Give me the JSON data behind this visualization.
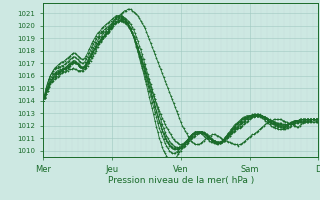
{
  "bg_color": "#cde8e2",
  "grid_color": "#a0c8c0",
  "line_color": "#1a6b2a",
  "xlabel": "Pression niveau de la mer( hPa )",
  "ylim": [
    1009.5,
    1021.8
  ],
  "yticks": [
    1010,
    1011,
    1012,
    1013,
    1014,
    1015,
    1016,
    1017,
    1018,
    1019,
    1020,
    1021
  ],
  "xtick_labels": [
    "Mer",
    "Jeu",
    "Ven",
    "Sam",
    "D"
  ],
  "xtick_positions": [
    0,
    48,
    96,
    144,
    192
  ],
  "total_points": 193,
  "series": [
    [
      1014.0,
      1014.2,
      1014.5,
      1014.8,
      1015.1,
      1015.3,
      1015.5,
      1015.6,
      1015.7,
      1015.8,
      1015.9,
      1016.0,
      1016.1,
      1016.2,
      1016.3,
      1016.3,
      1016.4,
      1016.4,
      1016.5,
      1016.5,
      1016.5,
      1016.6,
      1016.5,
      1016.5,
      1016.4,
      1016.4,
      1016.4,
      1016.4,
      1016.4,
      1016.5,
      1016.6,
      1016.8,
      1017.0,
      1017.2,
      1017.4,
      1017.6,
      1017.8,
      1018.0,
      1018.3,
      1018.5,
      1018.7,
      1018.9,
      1019.0,
      1019.2,
      1019.3,
      1019.5,
      1019.7,
      1019.9,
      1020.1,
      1020.3,
      1020.5,
      1020.6,
      1020.7,
      1020.8,
      1020.9,
      1021.0,
      1021.1,
      1021.2,
      1021.2,
      1021.3,
      1021.3,
      1021.3,
      1021.2,
      1021.1,
      1021.0,
      1020.9,
      1020.8,
      1020.6,
      1020.4,
      1020.2,
      1020.0,
      1019.8,
      1019.5,
      1019.2,
      1018.9,
      1018.6,
      1018.3,
      1018.0,
      1017.7,
      1017.4,
      1017.1,
      1016.8,
      1016.5,
      1016.2,
      1015.9,
      1015.6,
      1015.3,
      1015.0,
      1014.7,
      1014.4,
      1014.1,
      1013.8,
      1013.5,
      1013.2,
      1012.9,
      1012.6,
      1012.3,
      1012.0,
      1011.8,
      1011.6,
      1011.4,
      1011.2,
      1011.0,
      1010.8,
      1010.7,
      1010.6,
      1010.5,
      1010.5,
      1010.5,
      1010.5,
      1010.6,
      1010.7,
      1010.8,
      1010.9,
      1011.0,
      1011.1,
      1011.2,
      1011.2,
      1011.3,
      1011.3,
      1011.3,
      1011.2,
      1011.2,
      1011.1,
      1011.0,
      1010.9,
      1010.9,
      1010.8,
      1010.8,
      1010.7,
      1010.7,
      1010.6,
      1010.6,
      1010.5,
      1010.5,
      1010.5,
      1010.4,
      1010.5,
      1010.5,
      1010.6,
      1010.7,
      1010.8,
      1010.9,
      1011.0,
      1011.1,
      1011.2,
      1011.3,
      1011.3,
      1011.4,
      1011.5,
      1011.6,
      1011.7,
      1011.8,
      1011.9,
      1012.0,
      1012.1,
      1012.2,
      1012.3,
      1012.3,
      1012.4,
      1012.4,
      1012.5,
      1012.5,
      1012.5,
      1012.5,
      1012.5,
      1012.5,
      1012.4,
      1012.4,
      1012.3,
      1012.3,
      1012.2,
      1012.2,
      1012.1,
      1012.1,
      1012.0,
      1012.0,
      1011.9,
      1011.9,
      1012.0,
      1012.1,
      1012.2,
      1012.3,
      1012.4,
      1012.5,
      1012.5,
      1012.5,
      1012.5,
      1012.5,
      1012.5,
      1012.4,
      1012.3,
      1012.3
    ],
    [
      1014.0,
      1014.3,
      1014.7,
      1015.0,
      1015.3,
      1015.5,
      1015.7,
      1015.8,
      1015.9,
      1016.0,
      1016.1,
      1016.2,
      1016.3,
      1016.4,
      1016.5,
      1016.6,
      1016.7,
      1016.8,
      1016.9,
      1016.9,
      1017.0,
      1017.1,
      1017.0,
      1017.0,
      1016.9,
      1016.8,
      1016.7,
      1016.6,
      1016.6,
      1016.7,
      1016.8,
      1017.0,
      1017.2,
      1017.5,
      1017.7,
      1017.9,
      1018.1,
      1018.3,
      1018.5,
      1018.6,
      1018.8,
      1018.9,
      1019.0,
      1019.2,
      1019.3,
      1019.4,
      1019.6,
      1019.8,
      1020.0,
      1020.1,
      1020.2,
      1020.3,
      1020.4,
      1020.4,
      1020.4,
      1020.4,
      1020.3,
      1020.2,
      1020.1,
      1020.0,
      1019.8,
      1019.6,
      1019.4,
      1019.1,
      1018.9,
      1018.6,
      1018.3,
      1017.9,
      1017.6,
      1017.3,
      1016.9,
      1016.6,
      1016.2,
      1015.8,
      1015.5,
      1015.1,
      1014.7,
      1014.4,
      1014.1,
      1013.8,
      1013.5,
      1013.2,
      1012.9,
      1012.6,
      1012.4,
      1012.1,
      1011.9,
      1011.7,
      1011.5,
      1011.3,
      1011.1,
      1010.9,
      1010.8,
      1010.7,
      1010.6,
      1010.5,
      1010.5,
      1010.5,
      1010.5,
      1010.6,
      1010.7,
      1010.8,
      1010.9,
      1011.0,
      1011.1,
      1011.2,
      1011.3,
      1011.3,
      1011.4,
      1011.4,
      1011.4,
      1011.4,
      1011.3,
      1011.3,
      1011.2,
      1011.1,
      1011.0,
      1010.9,
      1010.9,
      1010.8,
      1010.8,
      1010.7,
      1010.7,
      1010.7,
      1010.7,
      1010.7,
      1010.8,
      1010.9,
      1011.0,
      1011.1,
      1011.2,
      1011.3,
      1011.4,
      1011.5,
      1011.6,
      1011.7,
      1011.8,
      1011.8,
      1011.9,
      1012.0,
      1012.1,
      1012.2,
      1012.3,
      1012.4,
      1012.5,
      1012.6,
      1012.7,
      1012.7,
      1012.8,
      1012.8,
      1012.8,
      1012.8,
      1012.8,
      1012.8,
      1012.7,
      1012.7,
      1012.6,
      1012.5,
      1012.5,
      1012.4,
      1012.4,
      1012.3,
      1012.3,
      1012.2,
      1012.2,
      1012.2,
      1012.2,
      1012.1,
      1012.1,
      1012.1,
      1012.1,
      1012.1,
      1012.2,
      1012.2,
      1012.3,
      1012.3,
      1012.3,
      1012.3,
      1012.3,
      1012.3,
      1012.3,
      1012.3,
      1012.3,
      1012.3,
      1012.3,
      1012.3,
      1012.4,
      1012.4,
      1012.5,
      1012.5,
      1012.5,
      1012.5,
      1012.5
    ],
    [
      1014.0,
      1014.2,
      1014.5,
      1014.8,
      1015.1,
      1015.4,
      1015.6,
      1015.8,
      1016.0,
      1016.1,
      1016.2,
      1016.3,
      1016.3,
      1016.4,
      1016.4,
      1016.5,
      1016.5,
      1016.6,
      1016.7,
      1016.8,
      1016.9,
      1017.0,
      1017.0,
      1017.0,
      1016.9,
      1016.8,
      1016.7,
      1016.6,
      1016.6,
      1016.7,
      1016.9,
      1017.1,
      1017.3,
      1017.5,
      1017.7,
      1017.9,
      1018.1,
      1018.3,
      1018.5,
      1018.7,
      1018.8,
      1018.9,
      1019.1,
      1019.2,
      1019.3,
      1019.4,
      1019.5,
      1019.7,
      1019.8,
      1020.0,
      1020.1,
      1020.2,
      1020.3,
      1020.4,
      1020.5,
      1020.5,
      1020.5,
      1020.5,
      1020.5,
      1020.4,
      1020.3,
      1020.1,
      1019.9,
      1019.7,
      1019.4,
      1019.1,
      1018.8,
      1018.4,
      1018.1,
      1017.7,
      1017.3,
      1016.9,
      1016.5,
      1016.1,
      1015.7,
      1015.3,
      1014.9,
      1014.5,
      1014.1,
      1013.7,
      1013.3,
      1012.9,
      1012.5,
      1012.1,
      1011.8,
      1011.5,
      1011.2,
      1011.0,
      1010.8,
      1010.6,
      1010.5,
      1010.4,
      1010.3,
      1010.3,
      1010.2,
      1010.2,
      1010.2,
      1010.2,
      1010.3,
      1010.4,
      1010.5,
      1010.6,
      1010.8,
      1010.9,
      1011.0,
      1011.1,
      1011.2,
      1011.3,
      1011.4,
      1011.5,
      1011.5,
      1011.5,
      1011.5,
      1011.4,
      1011.3,
      1011.2,
      1011.1,
      1011.0,
      1010.9,
      1010.8,
      1010.8,
      1010.7,
      1010.7,
      1010.7,
      1010.7,
      1010.7,
      1010.8,
      1010.9,
      1011.0,
      1011.1,
      1011.2,
      1011.4,
      1011.5,
      1011.6,
      1011.7,
      1011.8,
      1011.9,
      1012.0,
      1012.1,
      1012.2,
      1012.3,
      1012.4,
      1012.5,
      1012.5,
      1012.6,
      1012.7,
      1012.7,
      1012.8,
      1012.8,
      1012.8,
      1012.8,
      1012.8,
      1012.8,
      1012.8,
      1012.7,
      1012.7,
      1012.6,
      1012.5,
      1012.4,
      1012.4,
      1012.3,
      1012.3,
      1012.2,
      1012.2,
      1012.1,
      1012.1,
      1012.1,
      1012.0,
      1012.0,
      1012.0,
      1012.1,
      1012.1,
      1012.2,
      1012.3,
      1012.3,
      1012.4,
      1012.4,
      1012.4,
      1012.4,
      1012.5,
      1012.5,
      1012.5,
      1012.5,
      1012.5,
      1012.5,
      1012.5,
      1012.5,
      1012.5,
      1012.5,
      1012.5,
      1012.5,
      1012.5,
      1012.5
    ],
    [
      1014.0,
      1014.2,
      1014.5,
      1014.9,
      1015.2,
      1015.5,
      1015.7,
      1015.9,
      1016.1,
      1016.2,
      1016.3,
      1016.3,
      1016.4,
      1016.4,
      1016.5,
      1016.5,
      1016.6,
      1016.7,
      1016.8,
      1016.9,
      1017.0,
      1017.1,
      1017.1,
      1017.0,
      1016.9,
      1016.8,
      1016.7,
      1016.6,
      1016.6,
      1016.7,
      1016.9,
      1017.1,
      1017.3,
      1017.6,
      1017.8,
      1018.0,
      1018.2,
      1018.4,
      1018.6,
      1018.7,
      1018.9,
      1019.0,
      1019.1,
      1019.3,
      1019.4,
      1019.5,
      1019.6,
      1019.8,
      1019.9,
      1020.0,
      1020.2,
      1020.3,
      1020.3,
      1020.4,
      1020.4,
      1020.4,
      1020.4,
      1020.3,
      1020.2,
      1020.1,
      1019.9,
      1019.7,
      1019.5,
      1019.2,
      1018.9,
      1018.6,
      1018.2,
      1017.9,
      1017.5,
      1017.1,
      1016.8,
      1016.4,
      1016.0,
      1015.6,
      1015.2,
      1014.8,
      1014.4,
      1014.0,
      1013.6,
      1013.2,
      1012.8,
      1012.4,
      1012.1,
      1011.7,
      1011.4,
      1011.2,
      1010.9,
      1010.7,
      1010.5,
      1010.4,
      1010.3,
      1010.2,
      1010.2,
      1010.2,
      1010.2,
      1010.3,
      1010.4,
      1010.5,
      1010.6,
      1010.7,
      1010.8,
      1010.9,
      1011.1,
      1011.2,
      1011.3,
      1011.4,
      1011.5,
      1011.5,
      1011.5,
      1011.5,
      1011.5,
      1011.5,
      1011.4,
      1011.4,
      1011.3,
      1011.2,
      1011.1,
      1010.9,
      1010.8,
      1010.8,
      1010.7,
      1010.6,
      1010.6,
      1010.6,
      1010.6,
      1010.7,
      1010.8,
      1010.9,
      1011.0,
      1011.2,
      1011.3,
      1011.4,
      1011.6,
      1011.7,
      1011.8,
      1011.9,
      1012.0,
      1012.1,
      1012.2,
      1012.3,
      1012.4,
      1012.5,
      1012.6,
      1012.7,
      1012.7,
      1012.8,
      1012.8,
      1012.8,
      1012.8,
      1012.8,
      1012.8,
      1012.8,
      1012.8,
      1012.7,
      1012.7,
      1012.6,
      1012.5,
      1012.4,
      1012.3,
      1012.3,
      1012.2,
      1012.2,
      1012.1,
      1012.1,
      1012.0,
      1012.0,
      1012.0,
      1012.0,
      1011.9,
      1012.0,
      1012.0,
      1012.1,
      1012.1,
      1012.2,
      1012.3,
      1012.3,
      1012.4,
      1012.4,
      1012.4,
      1012.4,
      1012.4,
      1012.4,
      1012.4,
      1012.4,
      1012.4,
      1012.4,
      1012.4,
      1012.4,
      1012.5,
      1012.5,
      1012.5,
      1012.5,
      1012.5
    ],
    [
      1014.0,
      1014.3,
      1014.7,
      1015.1,
      1015.4,
      1015.7,
      1015.9,
      1016.1,
      1016.2,
      1016.3,
      1016.4,
      1016.4,
      1016.5,
      1016.5,
      1016.6,
      1016.6,
      1016.7,
      1016.8,
      1016.9,
      1017.0,
      1017.1,
      1017.2,
      1017.2,
      1017.1,
      1017.0,
      1016.9,
      1016.8,
      1016.7,
      1016.7,
      1016.8,
      1017.0,
      1017.2,
      1017.5,
      1017.7,
      1018.0,
      1018.2,
      1018.4,
      1018.6,
      1018.8,
      1019.0,
      1019.1,
      1019.2,
      1019.4,
      1019.5,
      1019.6,
      1019.7,
      1019.8,
      1020.0,
      1020.1,
      1020.2,
      1020.4,
      1020.5,
      1020.5,
      1020.6,
      1020.6,
      1020.6,
      1020.5,
      1020.4,
      1020.3,
      1020.2,
      1020.0,
      1019.8,
      1019.5,
      1019.2,
      1018.9,
      1018.6,
      1018.2,
      1017.8,
      1017.4,
      1017.0,
      1016.7,
      1016.3,
      1015.9,
      1015.5,
      1015.1,
      1014.7,
      1014.3,
      1013.9,
      1013.5,
      1013.1,
      1012.7,
      1012.3,
      1012.0,
      1011.6,
      1011.3,
      1011.0,
      1010.8,
      1010.6,
      1010.4,
      1010.3,
      1010.2,
      1010.1,
      1010.1,
      1010.1,
      1010.1,
      1010.2,
      1010.3,
      1010.4,
      1010.5,
      1010.6,
      1010.8,
      1010.9,
      1011.1,
      1011.2,
      1011.3,
      1011.4,
      1011.5,
      1011.5,
      1011.5,
      1011.5,
      1011.5,
      1011.5,
      1011.4,
      1011.3,
      1011.2,
      1011.1,
      1011.0,
      1010.9,
      1010.8,
      1010.7,
      1010.7,
      1010.6,
      1010.6,
      1010.6,
      1010.7,
      1010.8,
      1010.9,
      1011.0,
      1011.1,
      1011.3,
      1011.4,
      1011.5,
      1011.7,
      1011.8,
      1011.9,
      1012.1,
      1012.2,
      1012.3,
      1012.4,
      1012.5,
      1012.5,
      1012.6,
      1012.7,
      1012.7,
      1012.8,
      1012.8,
      1012.9,
      1012.9,
      1012.9,
      1012.9,
      1012.9,
      1012.9,
      1012.8,
      1012.7,
      1012.7,
      1012.6,
      1012.5,
      1012.4,
      1012.3,
      1012.2,
      1012.2,
      1012.1,
      1012.1,
      1012.0,
      1012.0,
      1012.0,
      1011.9,
      1011.9,
      1011.9,
      1011.9,
      1012.0,
      1012.1,
      1012.1,
      1012.2,
      1012.3,
      1012.3,
      1012.4,
      1012.4,
      1012.4,
      1012.5,
      1012.5,
      1012.5,
      1012.5,
      1012.5,
      1012.5,
      1012.5,
      1012.5,
      1012.5,
      1012.5,
      1012.5,
      1012.5,
      1012.5,
      1012.5
    ],
    [
      1014.0,
      1014.5,
      1015.0,
      1015.4,
      1015.7,
      1016.0,
      1016.2,
      1016.4,
      1016.5,
      1016.6,
      1016.6,
      1016.7,
      1016.7,
      1016.8,
      1016.8,
      1016.9,
      1017.0,
      1017.1,
      1017.2,
      1017.3,
      1017.4,
      1017.5,
      1017.5,
      1017.4,
      1017.3,
      1017.2,
      1017.1,
      1017.0,
      1017.0,
      1017.1,
      1017.3,
      1017.5,
      1017.8,
      1018.0,
      1018.3,
      1018.5,
      1018.7,
      1018.9,
      1019.1,
      1019.2,
      1019.4,
      1019.5,
      1019.6,
      1019.7,
      1019.8,
      1019.9,
      1020.0,
      1020.1,
      1020.2,
      1020.4,
      1020.5,
      1020.6,
      1020.7,
      1020.7,
      1020.7,
      1020.7,
      1020.6,
      1020.5,
      1020.3,
      1020.2,
      1019.9,
      1019.7,
      1019.4,
      1019.1,
      1018.8,
      1018.4,
      1018.0,
      1017.6,
      1017.2,
      1016.8,
      1016.4,
      1016.0,
      1015.6,
      1015.2,
      1014.8,
      1014.4,
      1013.9,
      1013.5,
      1013.1,
      1012.7,
      1012.2,
      1011.8,
      1011.5,
      1011.2,
      1010.9,
      1010.6,
      1010.4,
      1010.2,
      1010.0,
      1009.9,
      1009.8,
      1009.8,
      1009.8,
      1009.9,
      1010.0,
      1010.1,
      1010.2,
      1010.3,
      1010.4,
      1010.6,
      1010.7,
      1010.9,
      1011.0,
      1011.2,
      1011.3,
      1011.4,
      1011.5,
      1011.5,
      1011.5,
      1011.5,
      1011.5,
      1011.5,
      1011.4,
      1011.3,
      1011.2,
      1011.1,
      1011.0,
      1010.9,
      1010.8,
      1010.7,
      1010.7,
      1010.6,
      1010.6,
      1010.6,
      1010.7,
      1010.8,
      1010.9,
      1011.0,
      1011.2,
      1011.3,
      1011.4,
      1011.6,
      1011.7,
      1011.9,
      1012.0,
      1012.1,
      1012.2,
      1012.3,
      1012.4,
      1012.5,
      1012.6,
      1012.6,
      1012.7,
      1012.7,
      1012.8,
      1012.8,
      1012.8,
      1012.9,
      1012.9,
      1012.9,
      1012.9,
      1012.8,
      1012.8,
      1012.7,
      1012.6,
      1012.5,
      1012.5,
      1012.4,
      1012.3,
      1012.2,
      1012.1,
      1012.1,
      1012.0,
      1012.0,
      1011.9,
      1011.9,
      1011.9,
      1011.8,
      1011.8,
      1011.9,
      1011.9,
      1012.0,
      1012.1,
      1012.2,
      1012.2,
      1012.3,
      1012.3,
      1012.4,
      1012.4,
      1012.4,
      1012.5,
      1012.5,
      1012.5,
      1012.5,
      1012.5,
      1012.5,
      1012.5,
      1012.5,
      1012.5,
      1012.5,
      1012.5,
      1012.5,
      1012.5
    ],
    [
      1014.0,
      1014.4,
      1014.9,
      1015.3,
      1015.7,
      1016.0,
      1016.2,
      1016.4,
      1016.6,
      1016.7,
      1016.8,
      1016.9,
      1017.0,
      1017.1,
      1017.1,
      1017.2,
      1017.3,
      1017.4,
      1017.5,
      1017.6,
      1017.7,
      1017.8,
      1017.8,
      1017.7,
      1017.6,
      1017.5,
      1017.4,
      1017.3,
      1017.3,
      1017.4,
      1017.6,
      1017.8,
      1018.1,
      1018.3,
      1018.6,
      1018.8,
      1019.0,
      1019.2,
      1019.4,
      1019.5,
      1019.6,
      1019.8,
      1019.9,
      1020.0,
      1020.1,
      1020.2,
      1020.3,
      1020.4,
      1020.5,
      1020.6,
      1020.7,
      1020.8,
      1020.8,
      1020.8,
      1020.8,
      1020.8,
      1020.7,
      1020.6,
      1020.4,
      1020.2,
      1020.0,
      1019.7,
      1019.4,
      1019.1,
      1018.7,
      1018.3,
      1017.9,
      1017.5,
      1017.0,
      1016.6,
      1016.2,
      1015.7,
      1015.3,
      1014.8,
      1014.3,
      1013.8,
      1013.4,
      1012.9,
      1012.4,
      1011.9,
      1011.5,
      1011.0,
      1010.7,
      1010.3,
      1010.0,
      1009.8,
      1009.6,
      1009.4,
      1009.3,
      1009.3,
      1009.3,
      1009.3,
      1009.4,
      1009.5,
      1009.7,
      1009.9,
      1010.0,
      1010.2,
      1010.4,
      1010.5,
      1010.7,
      1010.8,
      1011.0,
      1011.1,
      1011.2,
      1011.3,
      1011.4,
      1011.4,
      1011.4,
      1011.4,
      1011.4,
      1011.3,
      1011.2,
      1011.1,
      1011.0,
      1010.9,
      1010.8,
      1010.7,
      1010.7,
      1010.6,
      1010.6,
      1010.5,
      1010.5,
      1010.6,
      1010.7,
      1010.8,
      1010.9,
      1011.1,
      1011.2,
      1011.4,
      1011.5,
      1011.7,
      1011.8,
      1012.0,
      1012.1,
      1012.2,
      1012.3,
      1012.4,
      1012.5,
      1012.6,
      1012.7,
      1012.7,
      1012.8,
      1012.8,
      1012.8,
      1012.8,
      1012.8,
      1012.8,
      1012.8,
      1012.8,
      1012.8,
      1012.7,
      1012.7,
      1012.6,
      1012.5,
      1012.4,
      1012.3,
      1012.2,
      1012.1,
      1012.0,
      1011.9,
      1011.9,
      1011.8,
      1011.8,
      1011.7,
      1011.7,
      1011.7,
      1011.7,
      1011.7,
      1011.7,
      1011.8,
      1011.8,
      1011.9,
      1012.0,
      1012.1,
      1012.1,
      1012.2,
      1012.2,
      1012.2,
      1012.3,
      1012.3,
      1012.3,
      1012.3,
      1012.3,
      1012.3,
      1012.3,
      1012.3,
      1012.3,
      1012.3,
      1012.3,
      1012.3,
      1012.3,
      1012.3
    ]
  ]
}
